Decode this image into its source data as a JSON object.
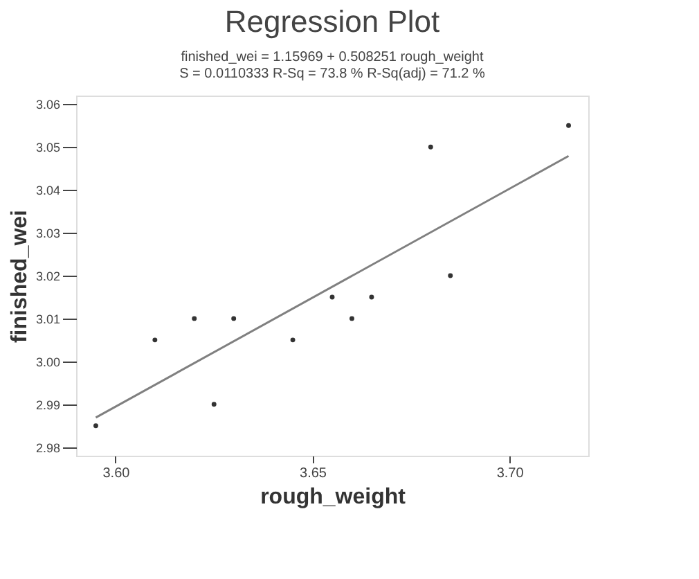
{
  "chart_data": {
    "type": "scatter",
    "title": "Regression Plot",
    "subtitle": "finished_wei = 1.15969 + 0.508251 rough_weight",
    "annotations": [
      "S = 0.0110333     R-Sq = 73.8 %     R-Sq(adj) = 71.2 %"
    ],
    "xlabel": "rough_weight",
    "ylabel": "finished_wei",
    "series": [
      {
        "color": "#333333",
        "x": [
          3.595,
          3.61,
          3.62,
          3.625,
          3.63,
          3.645,
          3.655,
          3.66,
          3.665,
          3.68,
          3.685,
          3.715
        ],
        "values": [
          2.985,
          3.005,
          3.01,
          2.99,
          3.01,
          3.005,
          3.015,
          3.01,
          3.015,
          3.05,
          3.02,
          3.055
        ]
      },
      {
        "type": "line",
        "marker": "none",
        "color": "#808080",
        "x": [
          3.595,
          3.715
        ],
        "values": [
          2.9869,
          3.0479
        ]
      }
    ],
    "xlim": [
      3.59,
      3.72
    ],
    "ylim": [
      2.978,
      3.062
    ],
    "xticks": [
      {
        "value": 3.6,
        "label": "3.60"
      },
      {
        "value": 3.65,
        "label": "3.65"
      },
      {
        "value": 3.7,
        "label": "3.70"
      }
    ],
    "yticks": [
      {
        "value": 2.98,
        "label": "2.98"
      },
      {
        "value": 2.99,
        "label": "2.99"
      },
      {
        "value": 3.0,
        "label": "3.00"
      },
      {
        "value": 3.01,
        "label": "3.01"
      },
      {
        "value": 3.02,
        "label": "3.02"
      },
      {
        "value": 3.03,
        "label": "3.03"
      },
      {
        "value": 3.04,
        "label": "3.04"
      },
      {
        "value": 3.05,
        "label": "3.05"
      },
      {
        "value": 3.06,
        "label": "3.06"
      }
    ],
    "grid": false,
    "marker": "circle",
    "line_style": "solid"
  }
}
